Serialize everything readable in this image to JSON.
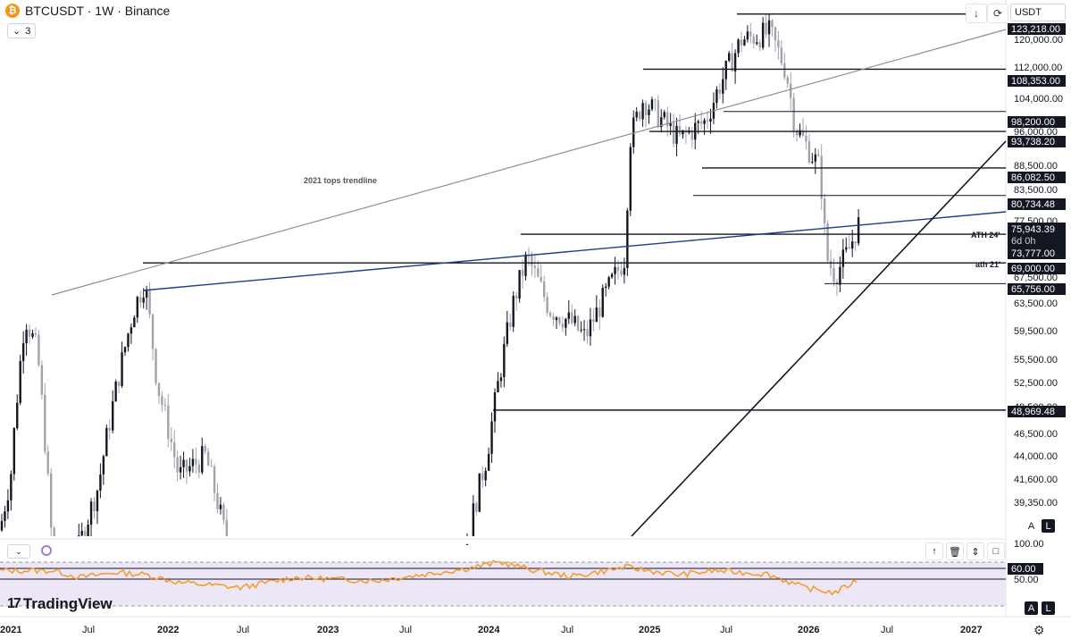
{
  "header": {
    "coin_icon": "bitcoin-icon",
    "symbol_title": "BTCUSDT · 1W · Binance",
    "indicator_count": "3",
    "currency": "USDT"
  },
  "toolbar": {
    "download_icon": "download-icon",
    "fullscreen_icon": "fullscreen-icon",
    "undo_icon": "reset-icon"
  },
  "annotations": [
    {
      "text": "2021 tops trendline"
    },
    {
      "text": "ATH 24'"
    },
    {
      "text": "ath 21'"
    }
  ],
  "price_axis": {
    "labels": [
      "120,000.00",
      "112,000.00",
      "104,000.00",
      "96,000.00",
      "88,500.00",
      "83,500.00",
      "77,500.00",
      "67,500.00",
      "63,500.00",
      "59,500.00",
      "55,500.00",
      "52,500.00",
      "49,500.00",
      "46,500.00",
      "44,000.00",
      "41,600.00",
      "39,350.00"
    ],
    "level_tags": [
      "123,218.00",
      "108,353.00",
      "98,200.00",
      "93,738.20",
      "86,082.50",
      "80,734.48",
      "73,777.00",
      "69,000.00",
      "65,756.00",
      "48,969.48"
    ],
    "current_price": "75,943.39",
    "countdown": "6d 0h"
  },
  "rsi_axis": {
    "labels": [
      "100.00",
      "50.00"
    ],
    "level_tag": "60.00"
  },
  "time_axis": {
    "labels": [
      "2021",
      "Jul",
      "2022",
      "Jul",
      "2023",
      "Jul",
      "2024",
      "Jul",
      "2025",
      "Jul",
      "2026",
      "Jul",
      "2027"
    ]
  },
  "scale_buttons": {
    "auto": "A",
    "log": "L"
  },
  "brand": {
    "name": "TradingView",
    "mark": "17"
  },
  "chart_data": {
    "type": "candlestick",
    "title": "BTCUSDT · 1W · Binance",
    "timeframe": "1W",
    "exchange": "Binance",
    "last_price": 75943.39,
    "price_range": [
      36500,
      126000
    ],
    "time_range": [
      "2021-01",
      "2027-02"
    ],
    "horizontal_levels": [
      123218.0,
      108353.0,
      98200.0,
      93738.2,
      86082.5,
      80734.48,
      73777.0,
      69000.0,
      65756.0,
      48969.48
    ],
    "trendlines": [
      {
        "label": "2021 tops trendline"
      },
      {
        "label": ""
      },
      {
        "label": ""
      }
    ],
    "indicator": {
      "name": "RSI",
      "levels": [
        60,
        50
      ]
    },
    "colors": {
      "up": "#131722",
      "down": "#a0a3ab",
      "rsi": "#f59a23",
      "blue_line": "#1c3c8c",
      "gray_line": "#8f8f8f",
      "rsi_band": "#ede6f6"
    }
  }
}
